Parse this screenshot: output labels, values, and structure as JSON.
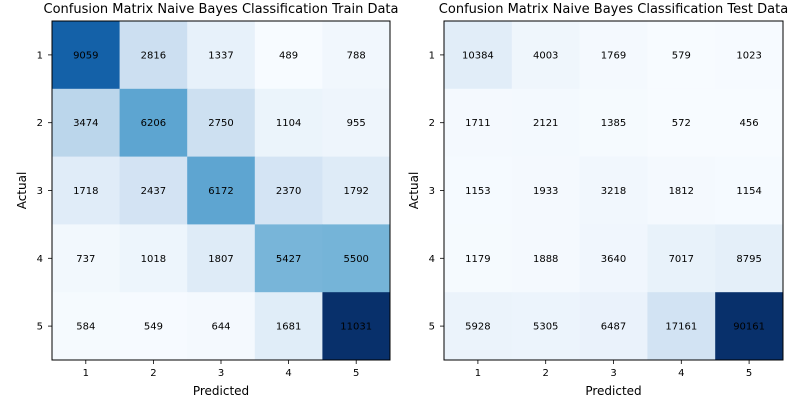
{
  "chart_data": [
    {
      "type": "heatmap",
      "title": "Confusion Matrix Naive Bayes Classification Train Data",
      "xlabel": "Predicted",
      "ylabel": "Actual",
      "x_categories": [
        "1",
        "2",
        "3",
        "4",
        "5"
      ],
      "y_categories": [
        "1",
        "2",
        "3",
        "4",
        "5"
      ],
      "colormap": "Blues",
      "values": [
        [
          9059,
          2816,
          1337,
          489,
          788
        ],
        [
          3474,
          6206,
          2750,
          1104,
          955
        ],
        [
          1718,
          2437,
          6172,
          2370,
          1792
        ],
        [
          737,
          1018,
          1807,
          5427,
          5500
        ],
        [
          584,
          549,
          644,
          1681,
          11031
        ]
      ]
    },
    {
      "type": "heatmap",
      "title": "Confusion Matrix Naive Bayes Classification Test Data",
      "xlabel": "Predicted",
      "ylabel": "Actual",
      "x_categories": [
        "1",
        "2",
        "3",
        "4",
        "5"
      ],
      "y_categories": [
        "1",
        "2",
        "3",
        "4",
        "5"
      ],
      "colormap": "Blues",
      "values": [
        [
          10384,
          4003,
          1769,
          579,
          1023
        ],
        [
          1711,
          2121,
          1385,
          572,
          456
        ],
        [
          1153,
          1933,
          3218,
          1812,
          1154
        ],
        [
          1179,
          1888,
          3640,
          7017,
          8795
        ],
        [
          5928,
          5305,
          6487,
          17161,
          90161
        ]
      ]
    }
  ]
}
